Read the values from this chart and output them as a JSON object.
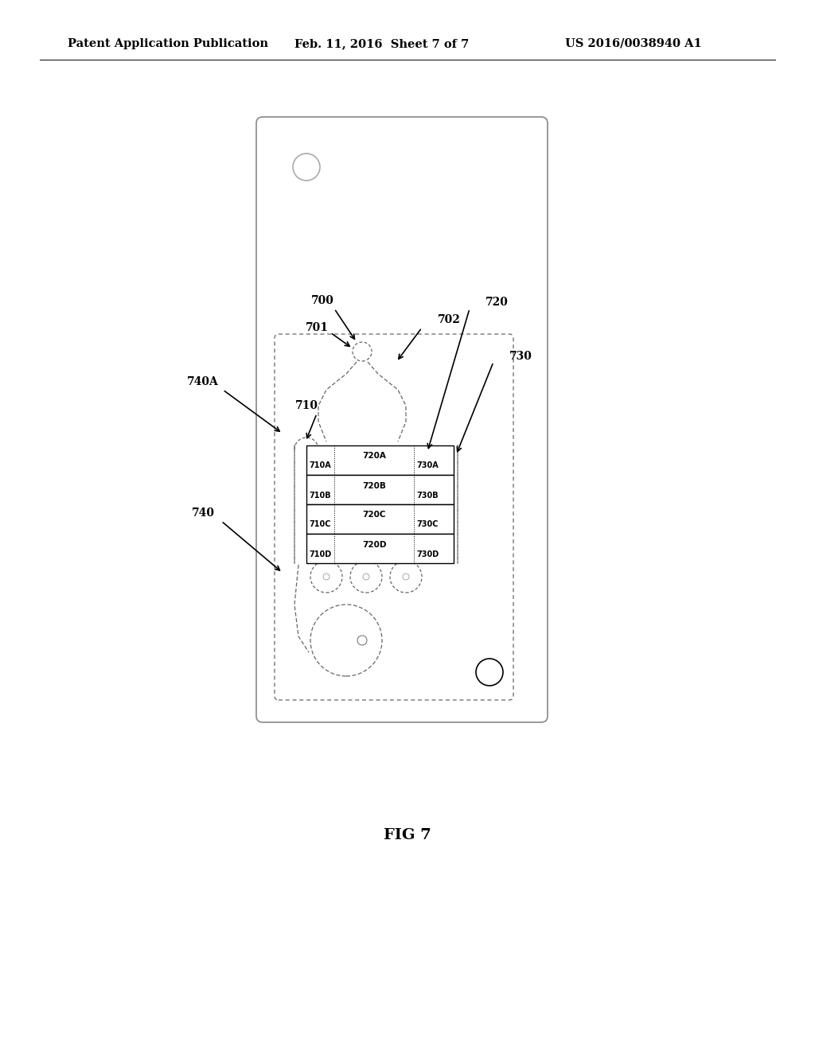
{
  "bg_color": "#ffffff",
  "header_left": "Patent Application Publication",
  "header_mid": "Feb. 11, 2016  Sheet 7 of 7",
  "header_right": "US 2016/0038940 A1",
  "fig_label": "FIG 7"
}
